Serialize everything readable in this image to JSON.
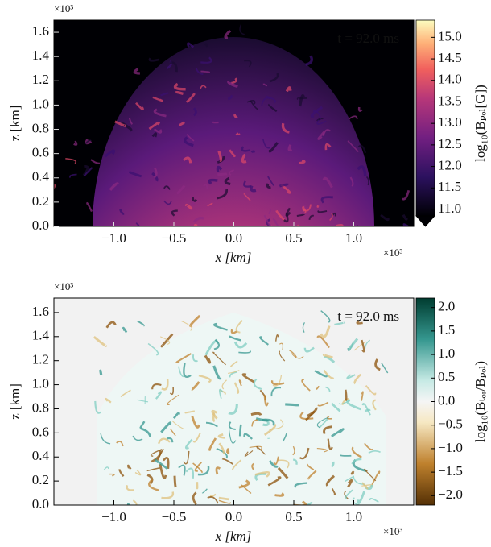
{
  "chart_data": [
    {
      "type": "heatmap",
      "colormap": "magma",
      "extend": "min",
      "annotation": "t  =  92.0 ms",
      "annotation_color": "#ffffff",
      "x_label": "x [km]",
      "y_label": "z [km]",
      "x_multiplier": "×10³",
      "y_multiplier": "×10³",
      "colorbar_label": "log₁₀(Bₚₒₗ[G])",
      "xlim": [
        -1.5,
        1.5
      ],
      "xticks": [
        {
          "value": -1,
          "label": "−1.0"
        },
        {
          "value": -0.5,
          "label": "−0.5"
        },
        {
          "value": 0,
          "label": "0.0"
        },
        0.5,
        {
          "value": 1,
          "label": "1.0"
        }
      ],
      "ylim": [
        0,
        1.7
      ],
      "yticks": [
        {
          "value": 0,
          "label": "0.0"
        },
        0.2,
        0.4,
        0.6,
        0.8,
        {
          "value": 1,
          "label": "1.0"
        },
        1.2,
        1.4,
        1.6
      ],
      "clim": [
        10.85,
        15.4
      ],
      "cticks": [
        {
          "value": 11,
          "label": "11.0"
        },
        11.5,
        {
          "value": 12,
          "label": "12.0"
        },
        12.5,
        {
          "value": 13,
          "label": "13.0"
        },
        13.5,
        {
          "value": 14,
          "label": "14.0"
        },
        14.5,
        {
          "value": 15,
          "label": "15.0"
        }
      ]
    },
    {
      "type": "heatmap",
      "colormap": "BrBG",
      "extend": "none",
      "annotation": "t  =  92.0 ms",
      "annotation_color": "#000000",
      "x_label": "x [km]",
      "y_label": "z [km]",
      "x_multiplier": "×10³",
      "y_multiplier": "×10³",
      "colorbar_label": "log₁₀(Bₜₒᵣ/Bₚₒₗ)",
      "xlim": [
        -1.5,
        1.5
      ],
      "xticks": [
        {
          "value": -1,
          "label": "−1.0"
        },
        {
          "value": -0.5,
          "label": "−0.5"
        },
        {
          "value": 0,
          "label": "0.0"
        },
        0.5,
        {
          "value": 1,
          "label": "1.0"
        }
      ],
      "ylim": [
        0,
        1.72
      ],
      "yticks": [
        {
          "value": 0,
          "label": "0.0"
        },
        0.2,
        0.4,
        0.6,
        0.8,
        {
          "value": 1,
          "label": "1.0"
        },
        1.2,
        1.4,
        1.6
      ],
      "clim": [
        -2.2,
        2.2
      ],
      "cticks": [
        {
          "value": -2,
          "label": "−2.0"
        },
        {
          "value": -1.5,
          "label": "−1.5"
        },
        {
          "value": -1,
          "label": "−1.0"
        },
        {
          "value": -0.5,
          "label": "−0.5"
        },
        {
          "value": 0,
          "label": "0.0"
        },
        0.5,
        {
          "value": 1,
          "label": "1.0"
        },
        1.5,
        {
          "value": 2,
          "label": "2.0"
        }
      ]
    }
  ]
}
